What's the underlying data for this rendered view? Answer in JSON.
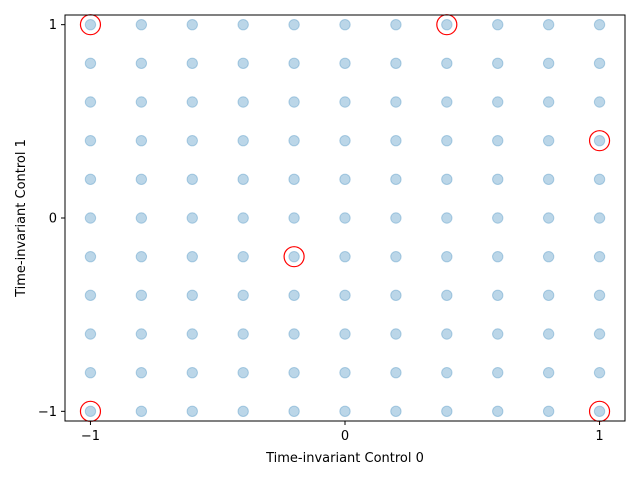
{
  "chart_data": {
    "type": "scatter",
    "xlabel": "Time-invariant Control 0",
    "ylabel": "Time-invariant Control 1",
    "xlim": [
      -1.1,
      1.1
    ],
    "ylim": [
      -1.05,
      1.05
    ],
    "xticks": [
      -1,
      0,
      1
    ],
    "yticks": [
      -1,
      0,
      1
    ],
    "xtick_labels": [
      "−1",
      "0",
      "1"
    ],
    "ytick_labels": [
      "−1",
      "0",
      "1"
    ],
    "grid": false,
    "series": [
      {
        "marker": "filled-circle",
        "color": "#1f77b4",
        "alpha": 0.3,
        "grid_x": [
          -1,
          -0.8,
          -0.6,
          -0.4,
          -0.2,
          0,
          0.2,
          0.4,
          0.6,
          0.8,
          1
        ],
        "grid_y": [
          -1,
          -0.8,
          -0.6,
          -0.4,
          -0.2,
          0,
          0.2,
          0.4,
          0.6,
          0.8,
          1
        ]
      },
      {
        "marker": "hollow-circle",
        "color": "#ff0000",
        "points": [
          {
            "x": -1,
            "y": 1
          },
          {
            "x": 0.4,
            "y": 1
          },
          {
            "x": 1,
            "y": 0.4
          },
          {
            "x": -0.2,
            "y": -0.2
          },
          {
            "x": -1,
            "y": -1
          },
          {
            "x": 1,
            "y": -1
          }
        ]
      }
    ]
  }
}
